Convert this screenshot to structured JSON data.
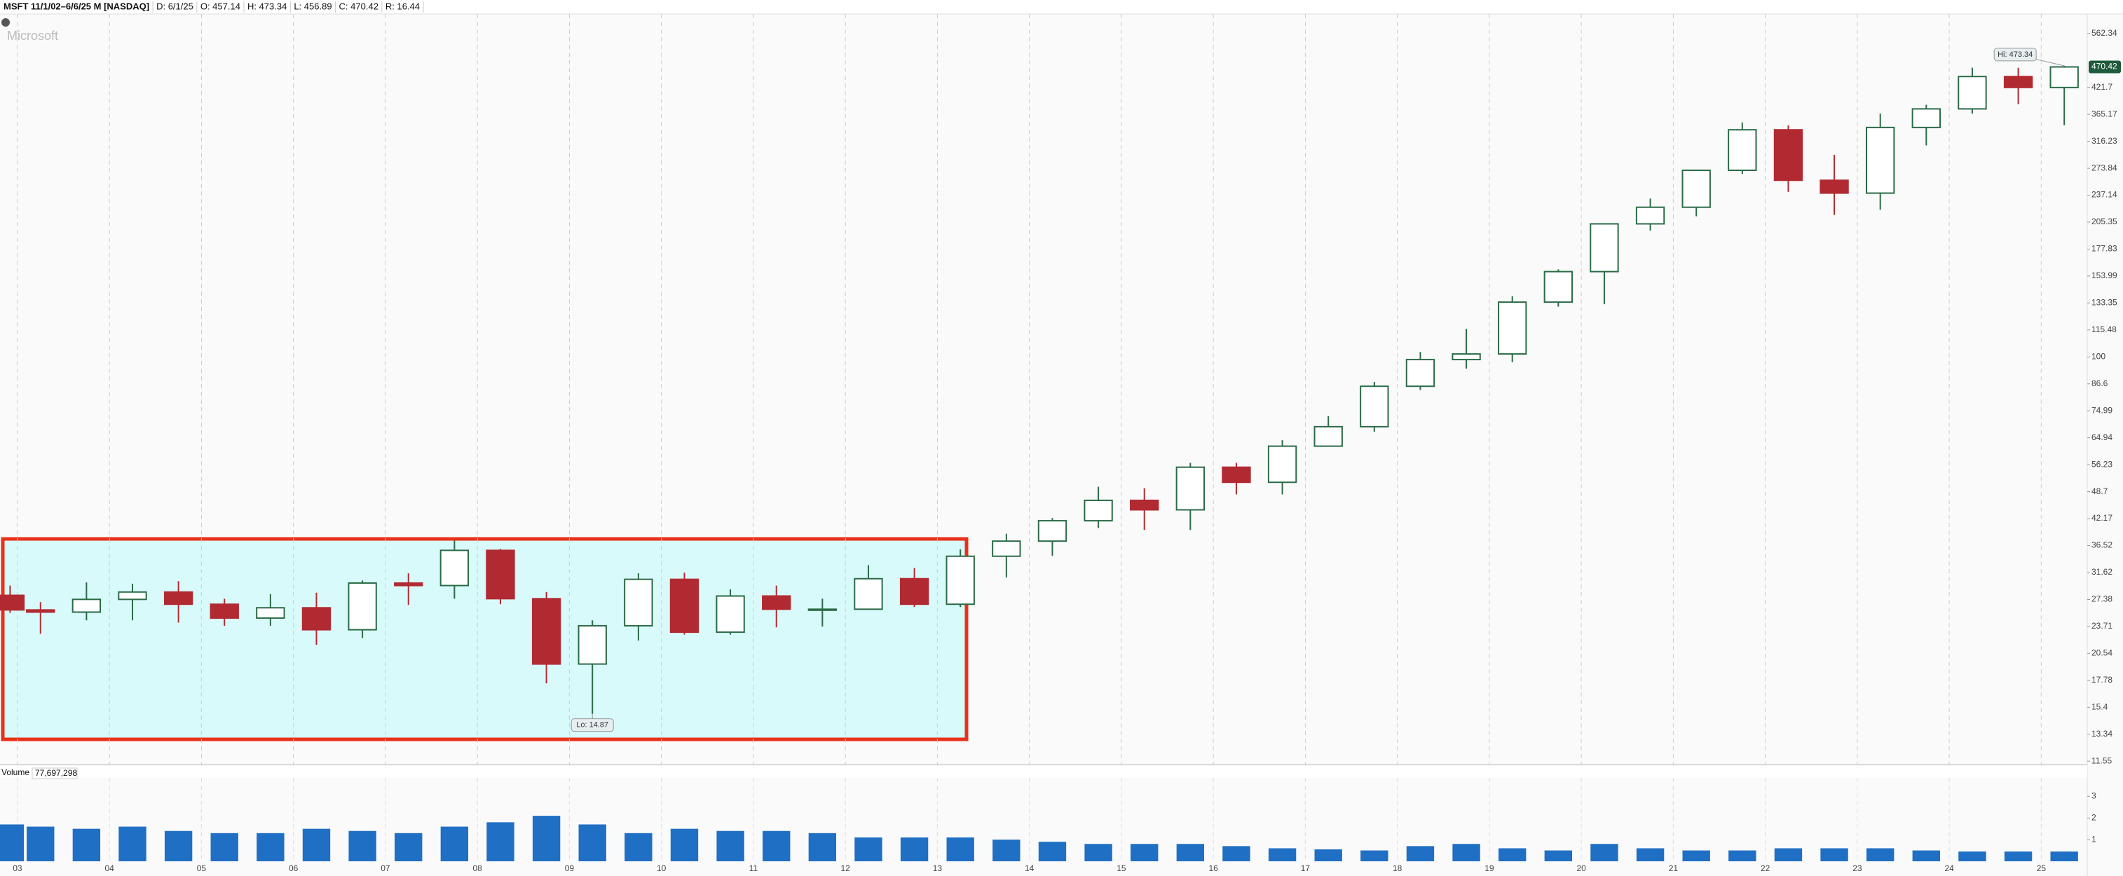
{
  "chart_data": {
    "type": "candlestick",
    "header": [
      "MSFT 11/1/02–6/6/25 M [NASDAQ]",
      "D: 6/1/25",
      "O: 457.14",
      "H: 473.34",
      "L: 456.89",
      "C: 470.42",
      "R: 16.44"
    ],
    "watermark": "Microsoft",
    "log_scale": true,
    "x": [
      2002.92,
      2003.25,
      2003.75,
      2004.25,
      2004.75,
      2005.25,
      2005.75,
      2006.25,
      2006.75,
      2007.25,
      2007.75,
      2008.25,
      2008.75,
      2009.25,
      2009.75,
      2010.25,
      2010.75,
      2011.25,
      2011.75,
      2012.25,
      2012.75,
      2013.25,
      2013.75,
      2014.25,
      2014.75,
      2015.25,
      2015.75,
      2016.25,
      2016.75,
      2017.25,
      2017.75,
      2018.25,
      2018.75,
      2019.25,
      2019.75,
      2020.25,
      2020.75,
      2021.25,
      2021.75,
      2022.25,
      2022.75,
      2023.25,
      2023.75,
      2024.25,
      2024.75,
      2025.25
    ],
    "open": [
      28,
      25.9,
      25.6,
      27.4,
      28.5,
      26.7,
      24.8,
      26.2,
      23.3,
      29.9,
      29.5,
      35.6,
      27.5,
      19.4,
      23.8,
      30.5,
      23,
      27.9,
      26,
      26,
      30.6,
      26.7,
      34.5,
      37.4,
      41.7,
      46.5,
      44.2,
      55.5,
      51.2,
      62.1,
      68.9,
      85.5,
      98.6,
      101.6,
      134,
      157.7,
      203.5,
      222.4,
      270.9,
      336.3,
      256.8,
      239.8,
      340.5,
      376,
      446.9,
      421.5
    ],
    "high": [
      29.5,
      27,
      30,
      29.8,
      30.2,
      27.5,
      28.2,
      28.4,
      30.3,
      31.5,
      37.5,
      35.9,
      28.5,
      24.5,
      31.5,
      31.6,
      28.9,
      29.5,
      27.5,
      32.9,
      32.4,
      35.8,
      38.9,
      42.3,
      50,
      49.6,
      56.8,
      56.8,
      64.1,
      72.9,
      87.5,
      102.7,
      116.2,
      138.4,
      159.6,
      203.9,
      232.9,
      271.7,
      349.7,
      344.3,
      294.2,
      366.8,
      384.3,
      468.4,
      468.3,
      473.34
    ],
    "low": [
      25.5,
      22.8,
      24.5,
      24.5,
      24.2,
      23.8,
      23.8,
      21.5,
      22.3,
      26.6,
      27.5,
      26.7,
      17.5,
      14.87,
      22,
      22.7,
      22.7,
      23.6,
      23.7,
      26,
      26.3,
      26.3,
      30.8,
      34.6,
      40.1,
      39.7,
      39.7,
      48,
      48,
      61.9,
      67.1,
      83.8,
      93.96,
      97.2,
      130.8,
      132.5,
      196.3,
      211.9,
      265.6,
      241.5,
      213.4,
      219.4,
      309.4,
      366.5,
      385.6,
      344.8
    ],
    "close": [
      25.9,
      25.6,
      27.4,
      28.5,
      26.7,
      24.8,
      26.2,
      23.3,
      29.9,
      29.5,
      35.6,
      27.5,
      19.4,
      23.8,
      30.5,
      23,
      27.9,
      26,
      26,
      30.6,
      26.7,
      34.5,
      37.4,
      41.7,
      46.5,
      44.2,
      55.5,
      51.2,
      62.1,
      68.9,
      85.5,
      98.6,
      101.6,
      134,
      157.7,
      203.5,
      222.4,
      270.9,
      336.3,
      256.8,
      239.8,
      340.5,
      376,
      446.9,
      421.5,
      470.42
    ],
    "volume": [
      1.7,
      1.6,
      1.5,
      1.6,
      1.4,
      1.3,
      1.3,
      1.5,
      1.4,
      1.3,
      1.6,
      1.8,
      2.1,
      1.7,
      1.3,
      1.5,
      1.4,
      1.4,
      1.3,
      1.1,
      1.1,
      1.1,
      1.0,
      0.9,
      0.8,
      0.8,
      0.8,
      0.7,
      0.6,
      0.55,
      0.5,
      0.7,
      0.8,
      0.6,
      0.5,
      0.8,
      0.6,
      0.5,
      0.5,
      0.6,
      0.6,
      0.6,
      0.5,
      0.45,
      0.45,
      0.45
    ],
    "up_color": "#2b6b47",
    "down_color": "#b12a32",
    "volume_color": "#1f6fc4",
    "xlim": [
      2002.81,
      2025.5
    ],
    "xticks": [
      {
        "value": 2003,
        "label": "03"
      },
      {
        "value": 2004,
        "label": "04"
      },
      {
        "value": 2005,
        "label": "05"
      },
      {
        "value": 2006,
        "label": "06"
      },
      {
        "value": 2007,
        "label": "07"
      },
      {
        "value": 2008,
        "label": "08"
      },
      {
        "value": 2009,
        "label": "09"
      },
      {
        "value": 2010,
        "label": "10"
      },
      {
        "value": 2011,
        "label": "11"
      },
      {
        "value": 2012,
        "label": "12"
      },
      {
        "value": 2013,
        "label": "13"
      },
      {
        "value": 2014,
        "label": "14"
      },
      {
        "value": 2015,
        "label": "15"
      },
      {
        "value": 2016,
        "label": "16"
      },
      {
        "value": 2017,
        "label": "17"
      },
      {
        "value": 2018,
        "label": "18"
      },
      {
        "value": 2019,
        "label": "19"
      },
      {
        "value": 2020,
        "label": "20"
      },
      {
        "value": 2021,
        "label": "21"
      },
      {
        "value": 2022,
        "label": "22"
      },
      {
        "value": 2023,
        "label": "23"
      },
      {
        "value": 2024,
        "label": "24"
      },
      {
        "value": 2025,
        "label": "25"
      }
    ],
    "ylim": [
      11.3,
      624
    ],
    "yticks": [
      562.34,
      421.7,
      365.17,
      316.23,
      273.84,
      237.14,
      205.35,
      177.83,
      153.99,
      133.35,
      115.48,
      100,
      86.6,
      74.99,
      64.94,
      56.23,
      48.7,
      42.17,
      36.52,
      31.62,
      27.38,
      23.71,
      20.54,
      17.78,
      15.4,
      13.34,
      11.55
    ],
    "price_badge": 470.42,
    "annotations": [
      {
        "text": "Hi: 473.34",
        "value": 473.34,
        "x": 2025.25
      },
      {
        "text": "Lo: 14.87",
        "value": 14.87,
        "x": 2009.25
      }
    ],
    "volume_label": "Volume",
    "volume_value": "77,697,298",
    "volume_ylim": [
      0,
      3.3
    ],
    "volume_yticks": [
      1,
      2,
      3
    ]
  }
}
